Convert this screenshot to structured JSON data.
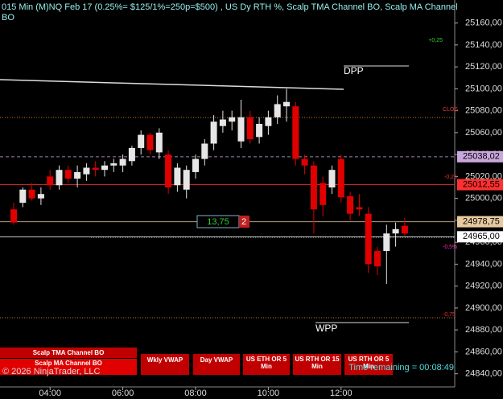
{
  "chart_data": {
    "type": "candlestick",
    "title": "015 Min (M)NQ Feb 17  (0.25%= $125/1%=250p=$500) , US Dy RTH %, Scalp TMA Channel BO, Scalp MA Channel",
    "subtitle": "BO",
    "categories": [
      null,
      null,
      null,
      null,
      "04:00",
      null,
      null,
      null,
      null,
      null,
      null,
      null,
      "06:00",
      null,
      null,
      null,
      null,
      null,
      null,
      null,
      "08:00",
      null,
      null,
      null,
      null,
      null,
      null,
      null,
      "10:00",
      null,
      null,
      null,
      null,
      null,
      null,
      null,
      "12:00",
      null,
      null,
      null,
      null,
      null,
      null,
      null
    ],
    "open": [
      24990,
      24996,
      25008,
      25000,
      25020,
      25012,
      25026,
      25018,
      25022,
      25028,
      25026,
      25030,
      25030,
      25034,
      25046,
      25058,
      25042,
      25040,
      25012,
      25008,
      25024,
      25036,
      25050,
      25066,
      25070,
      25052,
      25074,
      25056,
      25066,
      25074,
      25084,
      25084,
      25036,
      25030,
      25014,
      25010,
      25036,
      25002,
      24992,
      24986,
      24952,
      24952,
      24968,
      24975
    ],
    "high": [
      24996,
      25010,
      25014,
      25010,
      25026,
      25030,
      25030,
      25030,
      25032,
      25034,
      25034,
      25036,
      25040,
      25048,
      25062,
      25060,
      25064,
      25044,
      25032,
      25030,
      25040,
      25054,
      25076,
      25080,
      25080,
      25090,
      25080,
      25074,
      25080,
      25094,
      25100,
      25088,
      25040,
      25034,
      25020,
      25030,
      25040,
      25006,
      25004,
      24992,
      24956,
      24976,
      24978,
      24982
    ],
    "low": [
      24976,
      24992,
      24998,
      24994,
      25008,
      25008,
      25014,
      25010,
      25016,
      25020,
      25020,
      25024,
      25024,
      25030,
      25040,
      25040,
      25036,
      25004,
      25006,
      25000,
      25018,
      25030,
      25044,
      25060,
      25062,
      25046,
      25050,
      25050,
      25058,
      25068,
      25070,
      25030,
      25022,
      24968,
      24984,
      25004,
      24996,
      24980,
      24984,
      24932,
      24930,
      24922,
      24956,
      24966
    ],
    "close": [
      24978,
      25008,
      25000,
      25004,
      25012,
      25026,
      25018,
      25024,
      25028,
      25026,
      25030,
      25032,
      25036,
      25046,
      25058,
      25044,
      25060,
      25010,
      25028,
      25026,
      25036,
      25050,
      25070,
      25072,
      25074,
      25074,
      25054,
      25068,
      25074,
      25086,
      25088,
      25036,
      25030,
      24990,
      24994,
      25026,
      25001,
      24986,
      24990,
      24940,
      24938,
      24968,
      24972,
      24968
    ],
    "up_color": "#e6e6e6",
    "down_color": "#e00000",
    "ylim": [
      24828,
      25181
    ],
    "yticks": [
      {
        "value": 24840,
        "label": "24840,00"
      },
      {
        "value": 24860,
        "label": "24860,00"
      },
      {
        "value": 24880,
        "label": "24880,00"
      },
      {
        "value": 24900,
        "label": "24900,00"
      },
      {
        "value": 24920,
        "label": "24920,00"
      },
      {
        "value": 24940,
        "label": "24940,00"
      },
      {
        "value": 24960,
        "label": "24960,00"
      },
      {
        "value": 24980,
        "label": "24980,00"
      },
      {
        "value": 25000,
        "label": "25000,00"
      },
      {
        "value": 25020,
        "label": "25020,00"
      },
      {
        "value": 25040,
        "label": "25040,00"
      },
      {
        "value": 25060,
        "label": "25060,00"
      },
      {
        "value": 25080,
        "label": "25080,00"
      },
      {
        "value": 25100,
        "label": "25100,00"
      },
      {
        "value": 25120,
        "label": "25120,00"
      },
      {
        "value": 25140,
        "label": "25140,00"
      },
      {
        "value": 25160,
        "label": "25160,00"
      }
    ],
    "levels": [
      {
        "value": 25038.02,
        "label": "25038,02",
        "color": "#c9a6dc"
      },
      {
        "value": 25012.55,
        "label": "25012,55",
        "color": "#ff3030"
      },
      {
        "value": 24978.75,
        "label": "24978,75",
        "color": "#e8c9a0"
      },
      {
        "value": 24965,
        "label": "24965,00",
        "color": "#ffffff"
      }
    ],
    "annotations": [
      "+0,25",
      "CLOS",
      "-0,25",
      "-0,5%",
      "-0,75",
      "DPP",
      "WPP",
      "13,75",
      "2"
    ]
  },
  "toolbar": {
    "buttons": [
      "Scalp TMA Channel BO",
      "Scalp MA Channel BO",
      "Wkly VWAP",
      "Day VWAP",
      "US ETH OR 5 Min",
      "US RTH OR 15 Min",
      "US RTH OR 5 Min"
    ],
    "copyright": "© 2026 NinjaTrader, LLC",
    "timer": "Time remaining = 00:08:49"
  }
}
